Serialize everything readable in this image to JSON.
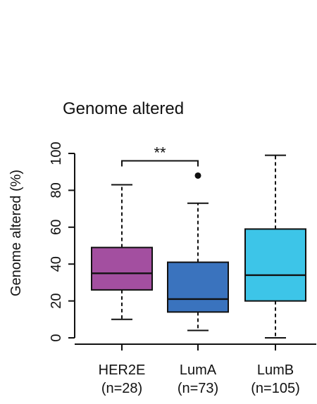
{
  "chart_data": {
    "type": "box",
    "title": "Genome altered",
    "xlabel": "",
    "ylabel": "Genome altered (%)",
    "ylim": [
      0,
      100
    ],
    "yticks": [
      "0",
      "20",
      "40",
      "60",
      "80",
      "100"
    ],
    "grid": false,
    "categories": [
      {
        "name": "HER2E",
        "n_label": "(n=28)",
        "color": "#A34FA0",
        "whisker_low": 10,
        "q1": 26,
        "median": 35,
        "q3": 49,
        "whisker_high": 83,
        "outliers": []
      },
      {
        "name": "LumA",
        "n_label": "(n=73)",
        "color": "#3A73BE",
        "whisker_low": 4,
        "q1": 14,
        "median": 21,
        "q3": 41,
        "whisker_high": 73,
        "outliers": [
          88
        ]
      },
      {
        "name": "LumB",
        "n_label": "(n=105)",
        "color": "#3DC5E8",
        "whisker_low": 0,
        "q1": 20,
        "median": 34,
        "q3": 59,
        "whisker_high": 99,
        "outliers": []
      }
    ],
    "annotations": [
      {
        "text": "**",
        "from": "HER2E",
        "to": "LumA",
        "y": 96
      }
    ]
  }
}
